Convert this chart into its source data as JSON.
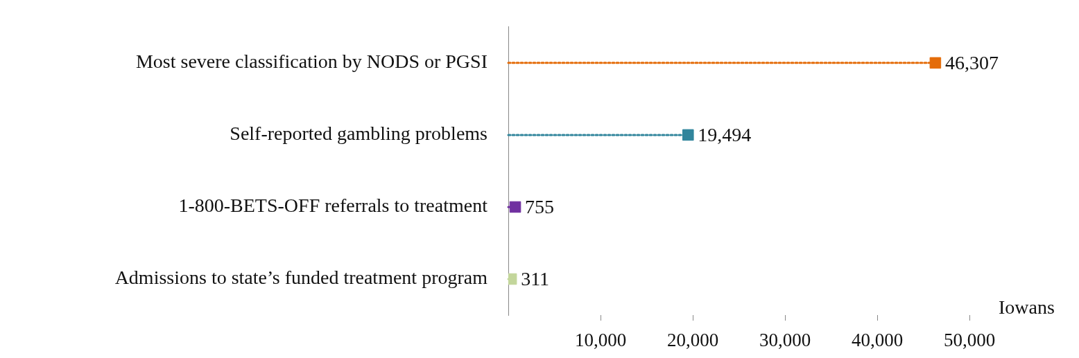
{
  "chart_data": {
    "type": "lollipop",
    "orientation": "horizontal",
    "xlabel": "Iowans",
    "categories": [
      "Most severe classification by NODS or PGSI",
      "Self-reported gambling problems",
      "1-800-BETS-OFF referrals to treatment",
      "Admissions to state’s funded treatment program"
    ],
    "values": [
      46307,
      19494,
      755,
      311
    ],
    "colors": [
      "#e46c0a",
      "#31859c",
      "#7030a0",
      "#c3d69b"
    ],
    "value_labels": [
      "46,307",
      "19,494",
      "755",
      "311"
    ],
    "xlim": [
      0,
      50000
    ],
    "xticks": [
      {
        "value": 10000,
        "label": "10,000"
      },
      {
        "value": 20000,
        "label": "20,000"
      },
      {
        "value": 30000,
        "label": "30,000"
      },
      {
        "value": 40000,
        "label": "40,000"
      },
      {
        "value": 50000,
        "label": "50,000"
      }
    ],
    "marker": "square",
    "line_style": "dotted",
    "grid": false,
    "legend": false
  }
}
